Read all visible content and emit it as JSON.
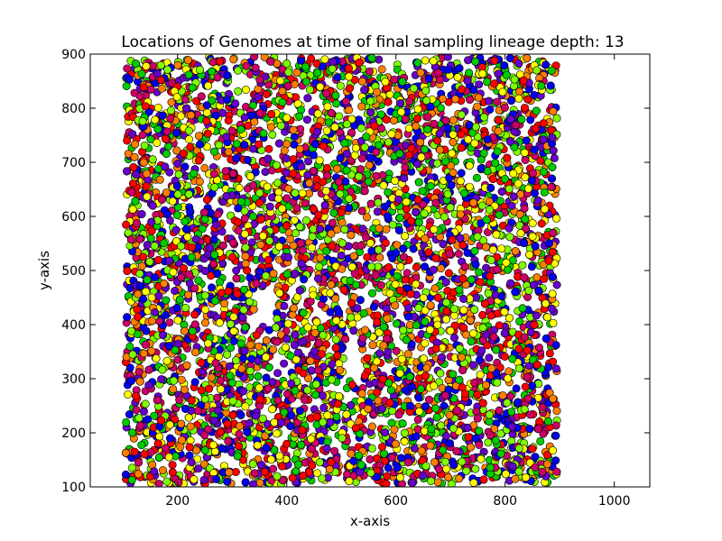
{
  "chart_data": {
    "type": "scatter",
    "title": "Locations of Genomes at time of final sampling lineage depth: 13",
    "xlabel": "x-axis",
    "ylabel": "y-axis",
    "xlim": [
      40,
      1065
    ],
    "ylim": [
      100,
      900
    ],
    "xticks": [
      200,
      400,
      600,
      800,
      1000
    ],
    "yticks": [
      100,
      200,
      300,
      400,
      500,
      600,
      700,
      800,
      900
    ],
    "grid": false,
    "legend": "none",
    "points_extent": {
      "x": [
        100,
        900
      ],
      "y": [
        100,
        900
      ]
    },
    "palette": [
      "#ff0000",
      "#ffff00",
      "#00cc00",
      "#6600cc",
      "#0000ee",
      "#ff7f00",
      "#7fff00",
      "#cc0066"
    ],
    "marker_edge_color": "#000000"
  }
}
